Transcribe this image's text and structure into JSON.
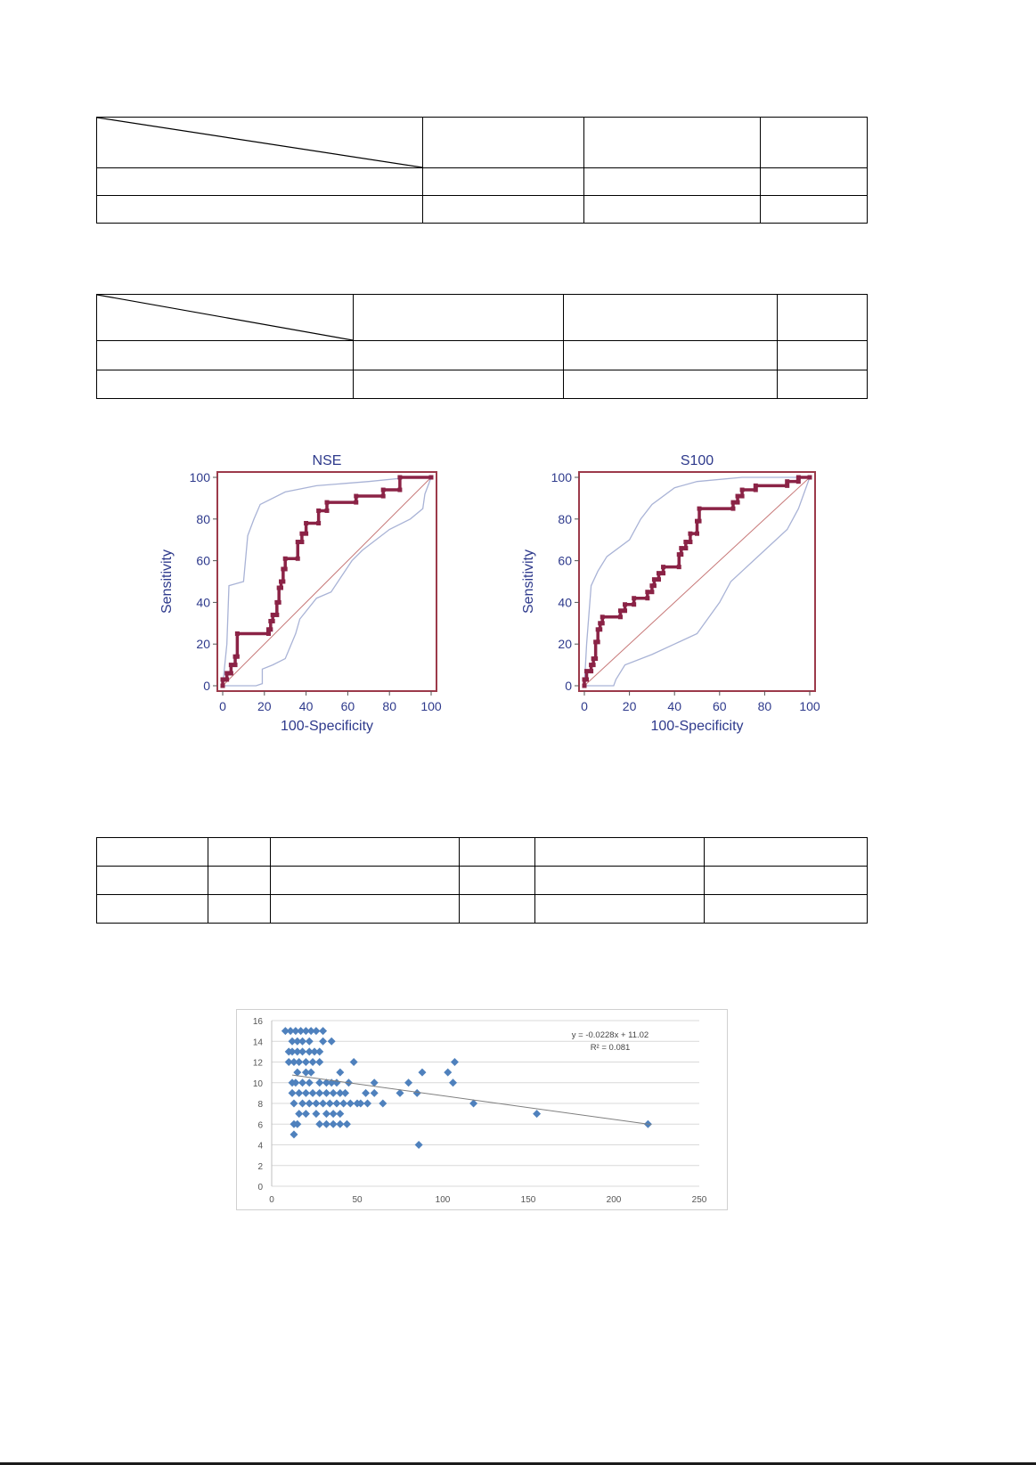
{
  "chart_data": [
    {
      "type": "line",
      "title": "NSE",
      "xlabel": "100-Specificity",
      "ylabel": "Sensitivity",
      "xlim": [
        0,
        100
      ],
      "ylim": [
        0,
        100
      ],
      "xticks": [
        0,
        20,
        40,
        60,
        80,
        100
      ],
      "yticks": [
        0,
        20,
        40,
        60,
        80,
        100
      ],
      "colors": {
        "roc": "#8b2346",
        "ci": "#a9b3d6",
        "diagonal": "#c77878",
        "axis_text": "#2e3a8c"
      },
      "series": [
        {
          "values_xy": [
            [
              0,
              0
            ],
            [
              0,
              3
            ],
            [
              2,
              3
            ],
            [
              2,
              6
            ],
            [
              4,
              6
            ],
            [
              4,
              10
            ],
            [
              6,
              10
            ],
            [
              6,
              14
            ],
            [
              7,
              14
            ],
            [
              7,
              25
            ],
            [
              22,
              25
            ],
            [
              22,
              27
            ],
            [
              23,
              27
            ],
            [
              23,
              31
            ],
            [
              24,
              31
            ],
            [
              24,
              34
            ],
            [
              26,
              34
            ],
            [
              26,
              40
            ],
            [
              27,
              40
            ],
            [
              27,
              47
            ],
            [
              28,
              47
            ],
            [
              28,
              50
            ],
            [
              29,
              50
            ],
            [
              29,
              56
            ],
            [
              30,
              56
            ],
            [
              30,
              61
            ],
            [
              36,
              61
            ],
            [
              36,
              69
            ],
            [
              38,
              69
            ],
            [
              38,
              73
            ],
            [
              40,
              73
            ],
            [
              40,
              78
            ],
            [
              46,
              78
            ],
            [
              46,
              84
            ],
            [
              50,
              84
            ],
            [
              50,
              88
            ],
            [
              64,
              88
            ],
            [
              64,
              91
            ],
            [
              77,
              91
            ],
            [
              77,
              94
            ],
            [
              85,
              94
            ],
            [
              85,
              100
            ],
            [
              100,
              100
            ]
          ]
        },
        {
          "values_xy": [
            [
              0,
              0
            ],
            [
              2,
              20
            ],
            [
              3,
              48
            ],
            [
              10,
              50
            ],
            [
              12,
              72
            ],
            [
              15,
              80
            ],
            [
              18,
              87
            ],
            [
              30,
              93
            ],
            [
              45,
              96
            ],
            [
              70,
              98
            ],
            [
              90,
              100
            ],
            [
              100,
              100
            ]
          ]
        },
        {
          "values_xy": [
            [
              0,
              0
            ],
            [
              16,
              0
            ],
            [
              19,
              1
            ],
            [
              19,
              8
            ],
            [
              24,
              10
            ],
            [
              30,
              13
            ],
            [
              35,
              25
            ],
            [
              37,
              32
            ],
            [
              45,
              42
            ],
            [
              52,
              45
            ],
            [
              62,
              60
            ],
            [
              67,
              65
            ],
            [
              80,
              75
            ],
            [
              90,
              80
            ],
            [
              96,
              85
            ],
            [
              97,
              92
            ],
            [
              100,
              100
            ]
          ]
        }
      ]
    },
    {
      "type": "line",
      "title": "S100",
      "xlabel": "100-Specificity",
      "ylabel": "Sensitivity",
      "xlim": [
        0,
        100
      ],
      "ylim": [
        0,
        100
      ],
      "xticks": [
        0,
        20,
        40,
        60,
        80,
        100
      ],
      "yticks": [
        0,
        20,
        40,
        60,
        80,
        100
      ],
      "colors": {
        "roc": "#8b2346",
        "ci": "#a9b3d6",
        "diagonal": "#c77878",
        "axis_text": "#2e3a8c"
      },
      "series": [
        {
          "values_xy": [
            [
              0,
              0
            ],
            [
              0,
              3
            ],
            [
              1,
              3
            ],
            [
              1,
              7
            ],
            [
              3,
              7
            ],
            [
              3,
              10
            ],
            [
              4,
              10
            ],
            [
              4,
              13
            ],
            [
              5,
              13
            ],
            [
              5,
              21
            ],
            [
              6,
              21
            ],
            [
              6,
              27
            ],
            [
              7,
              27
            ],
            [
              7,
              30
            ],
            [
              8,
              30
            ],
            [
              8,
              33
            ],
            [
              16,
              33
            ],
            [
              16,
              36
            ],
            [
              18,
              36
            ],
            [
              18,
              39
            ],
            [
              22,
              39
            ],
            [
              22,
              42
            ],
            [
              28,
              42
            ],
            [
              28,
              45
            ],
            [
              30,
              45
            ],
            [
              30,
              48
            ],
            [
              31,
              48
            ],
            [
              31,
              51
            ],
            [
              33,
              51
            ],
            [
              33,
              54
            ],
            [
              35,
              54
            ],
            [
              35,
              57
            ],
            [
              42,
              57
            ],
            [
              42,
              63
            ],
            [
              43,
              63
            ],
            [
              43,
              66
            ],
            [
              45,
              66
            ],
            [
              45,
              69
            ],
            [
              47,
              69
            ],
            [
              47,
              73
            ],
            [
              50,
              73
            ],
            [
              50,
              79
            ],
            [
              51,
              79
            ],
            [
              51,
              85
            ],
            [
              66,
              85
            ],
            [
              66,
              88
            ],
            [
              68,
              88
            ],
            [
              68,
              91
            ],
            [
              70,
              91
            ],
            [
              70,
              94
            ],
            [
              76,
              94
            ],
            [
              76,
              96
            ],
            [
              90,
              96
            ],
            [
              90,
              98
            ],
            [
              95,
              98
            ],
            [
              95,
              100
            ],
            [
              100,
              100
            ]
          ]
        },
        {
          "values_xy": [
            [
              0,
              0
            ],
            [
              1,
              20
            ],
            [
              3,
              48
            ],
            [
              6,
              55
            ],
            [
              10,
              62
            ],
            [
              20,
              70
            ],
            [
              25,
              80
            ],
            [
              30,
              87
            ],
            [
              40,
              95
            ],
            [
              50,
              98
            ],
            [
              70,
              100
            ],
            [
              100,
              100
            ]
          ]
        },
        {
          "values_xy": [
            [
              0,
              0
            ],
            [
              13,
              0
            ],
            [
              14,
              3
            ],
            [
              18,
              10
            ],
            [
              30,
              15
            ],
            [
              40,
              20
            ],
            [
              50,
              25
            ],
            [
              60,
              40
            ],
            [
              65,
              50
            ],
            [
              70,
              55
            ],
            [
              80,
              65
            ],
            [
              90,
              75
            ],
            [
              95,
              85
            ],
            [
              100,
              100
            ]
          ]
        }
      ]
    },
    {
      "type": "scatter",
      "xlim": [
        0,
        250
      ],
      "ylim": [
        0,
        16
      ],
      "xticks": [
        0,
        50,
        100,
        150,
        200,
        250
      ],
      "yticks": [
        0,
        2,
        4,
        6,
        8,
        10,
        12,
        14,
        16
      ],
      "trendline": {
        "slope": -0.0228,
        "intercept": 11.02
      },
      "annotations": [
        "y = -0.0228x + 11.02",
        "R² = 0.081"
      ],
      "colors": {
        "points": "#4f81bd",
        "trend": "#7f7f7f",
        "grid": "#d9d9d9"
      },
      "series": [
        {
          "x": [
            8,
            11,
            14,
            17,
            20,
            23,
            26,
            30,
            10,
            12,
            15,
            18,
            22,
            25,
            28,
            12,
            15,
            18,
            22,
            30,
            35,
            10,
            13,
            16,
            20,
            24,
            28,
            15,
            20,
            23,
            40,
            12,
            14,
            18,
            22,
            28,
            32,
            35,
            38,
            45,
            48,
            60,
            80,
            88,
            103,
            107,
            12,
            16,
            20,
            24,
            28,
            32,
            36,
            40,
            43,
            55,
            60,
            75,
            85,
            106,
            13,
            18,
            22,
            26,
            30,
            34,
            38,
            42,
            46,
            65,
            52,
            56,
            118,
            16,
            20,
            26,
            32,
            36,
            40,
            50,
            155,
            13,
            15,
            28,
            32,
            36,
            40,
            44,
            220,
            13,
            86
          ],
          "y": [
            15,
            15,
            15,
            15,
            15,
            15,
            15,
            15,
            13,
            13,
            13,
            13,
            13,
            13,
            13,
            14,
            14,
            14,
            14,
            14,
            14,
            12,
            12,
            12,
            12,
            12,
            12,
            11,
            11,
            11,
            11,
            10,
            10,
            10,
            10,
            10,
            10,
            10,
            10,
            10,
            12,
            10,
            10,
            11,
            11,
            12,
            9,
            9,
            9,
            9,
            9,
            9,
            9,
            9,
            9,
            9,
            9,
            9,
            9,
            10,
            8,
            8,
            8,
            8,
            8,
            8,
            8,
            8,
            8,
            8,
            8,
            8,
            8,
            7,
            7,
            7,
            7,
            7,
            7,
            8,
            7,
            6,
            6,
            6,
            6,
            6,
            6,
            6,
            6,
            5,
            4
          ]
        }
      ]
    }
  ]
}
